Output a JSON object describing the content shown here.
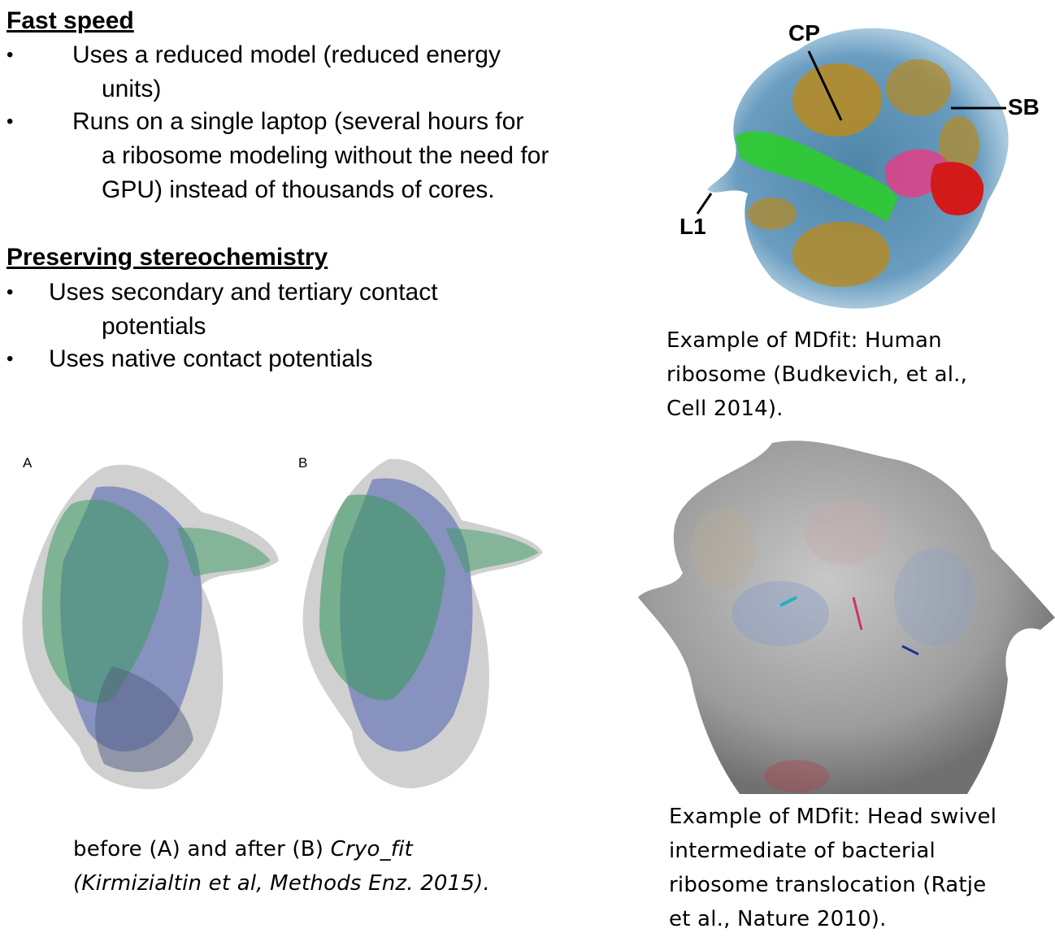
{
  "fast_speed": {
    "heading": "Fast speed",
    "bullets": [
      {
        "lines": [
          "Uses a reduced model (reduced energy",
          "units)"
        ]
      },
      {
        "lines": [
          "Runs on a single laptop (several hours for",
          "a ribosome modeling without the need for",
          "GPU) instead of thousands of cores."
        ]
      }
    ]
  },
  "stereochemistry": {
    "heading": "Preserving stereochemistry",
    "bullets": [
      {
        "lines": [
          "Uses secondary and tertiary contact",
          "potentials"
        ]
      },
      {
        "lines": [
          "Uses native contact potentials"
        ]
      }
    ]
  },
  "bullet_glyph": "•",
  "figure_human": {
    "labels": {
      "cp": "CP",
      "l1": "L1",
      "sb": "SB"
    },
    "caption": [
      "Example of MDfit: Human",
      "ribosome (Budkevich, et al.,",
      "Cell 2014)."
    ],
    "colors": {
      "density": "#6a9dc0",
      "protein": "#b8891f",
      "trna": "#2ecc2e",
      "factor_pink": "#d9448a",
      "factor_red": "#d21a1a"
    }
  },
  "figure_cryofit": {
    "panel_a": "A",
    "panel_b": "B",
    "caption_line1_plain": "before (A) and after (B) ",
    "caption_line1_italic": "Cryo_fit",
    "caption_line2": "(Kirmizialtin et al, Methods Enz. 2015).",
    "colors": {
      "rna": "#4a5fae",
      "protein": "#3a9a60",
      "density": "#9a9a9a"
    }
  },
  "figure_bacterial": {
    "caption": [
      "Example of MDfit: Head swivel",
      "intermediate of bacterial",
      "ribosome translocation (Ratje",
      "et al., Nature 2010)."
    ],
    "colors": {
      "surface": "#9c9c9c"
    }
  }
}
